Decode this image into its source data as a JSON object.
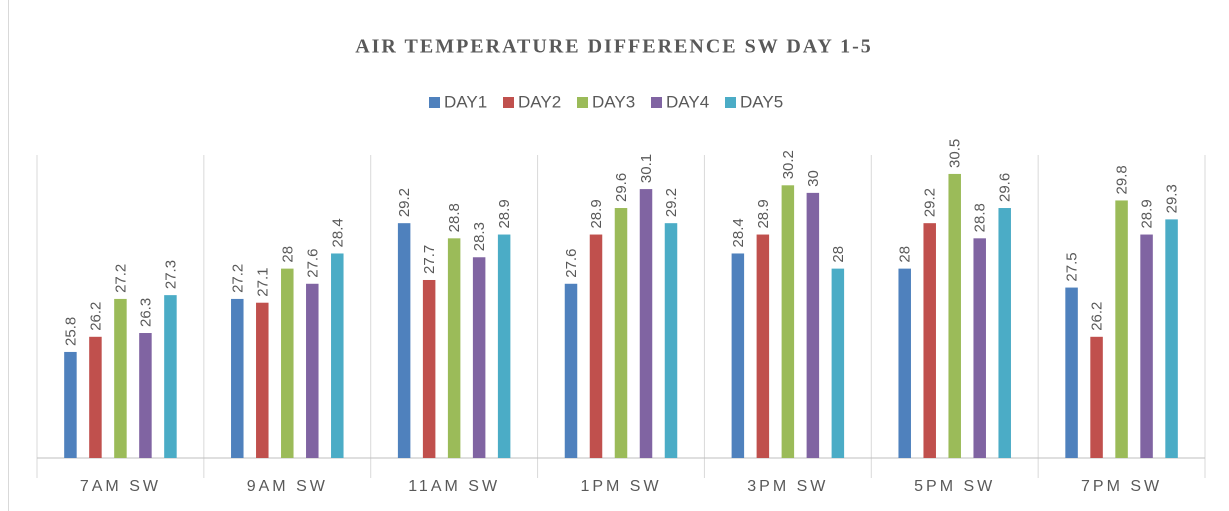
{
  "chart_data": {
    "type": "bar",
    "title": "AIR TEMPERATURE DIFFERENCE SW DAY 1-5",
    "categories": [
      "7AM SW",
      "9AM SW",
      "11AM SW",
      "1PM SW",
      "3PM SW",
      "5PM SW",
      "7PM SW"
    ],
    "series": [
      {
        "name": "DAY1",
        "color": "#4f81bd",
        "values": [
          25.8,
          27.2,
          29.2,
          27.6,
          28.4,
          28,
          27.5
        ]
      },
      {
        "name": "DAY2",
        "color": "#c0504d",
        "values": [
          26.2,
          27.1,
          27.7,
          28.9,
          28.9,
          29.2,
          26.2
        ]
      },
      {
        "name": "DAY3",
        "color": "#9bbb59",
        "values": [
          27.2,
          28,
          28.8,
          29.6,
          30.2,
          30.5,
          29.8
        ]
      },
      {
        "name": "DAY4",
        "color": "#8064a2",
        "values": [
          26.3,
          27.6,
          28.3,
          30.1,
          30,
          28.8,
          28.9
        ]
      },
      {
        "name": "DAY5",
        "color": "#4bacc6",
        "values": [
          27.3,
          28.4,
          28.9,
          29.2,
          28,
          29.6,
          29.3
        ]
      }
    ],
    "ylim": [
      23,
      31
    ],
    "legend": "top"
  }
}
